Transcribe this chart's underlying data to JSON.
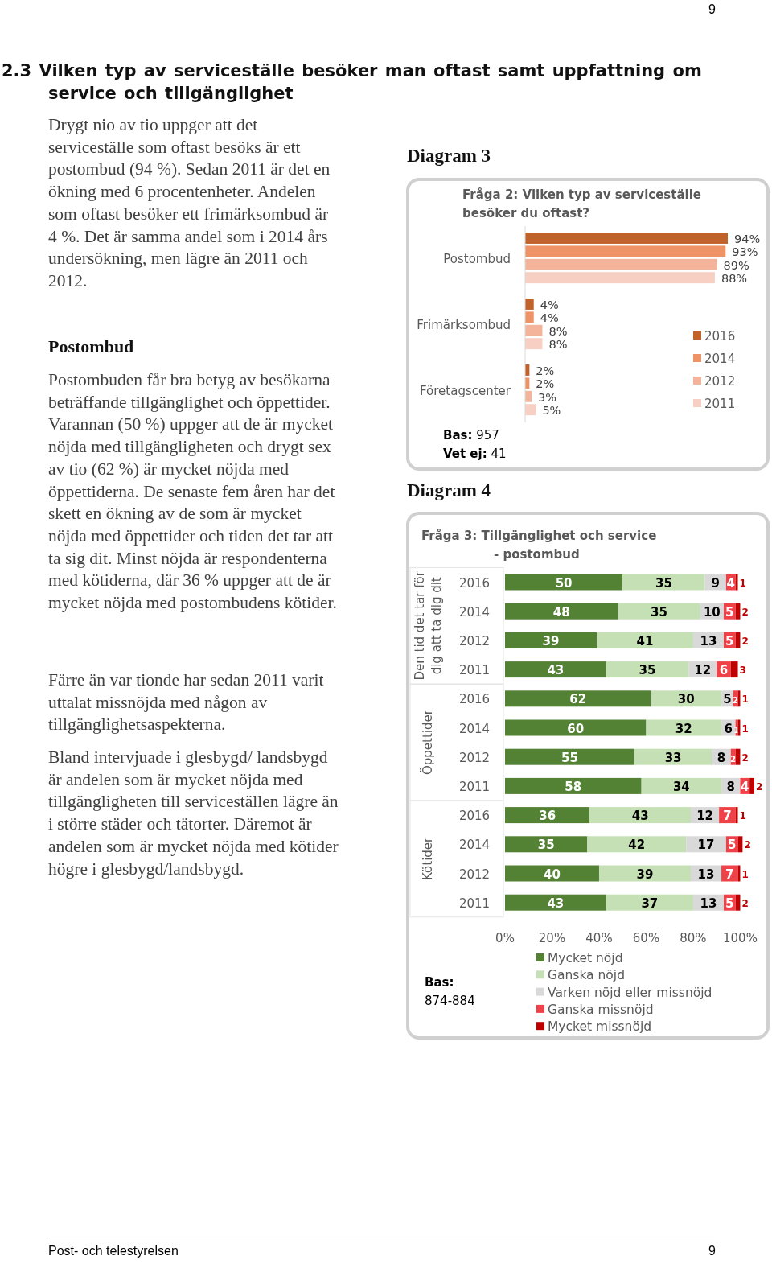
{
  "chart_data": [
    {
      "type": "bar",
      "orientation": "horizontal",
      "title": "Fråga 2: Vilken typ av serviceställe besöker du oftast?",
      "categories": [
        "Postombud",
        "Frimärksombud",
        "Företagscenter"
      ],
      "series": [
        {
          "name": "2016",
          "color": "#c0622a",
          "values": [
            94,
            4,
            2
          ],
          "value_labels": [
            "94%",
            "4%",
            "2%"
          ]
        },
        {
          "name": "2014",
          "color": "#ee9366",
          "values": [
            93,
            4,
            2
          ],
          "value_labels": [
            "93%",
            "4%",
            "2%"
          ]
        },
        {
          "name": "2012",
          "color": "#f4b49c",
          "values": [
            89,
            8,
            3
          ],
          "value_labels": [
            "89%",
            "8%",
            "3%"
          ]
        },
        {
          "name": "2011",
          "color": "#f8cfc3",
          "values": [
            88,
            8,
            5
          ],
          "value_labels": [
            "88%",
            "8%",
            "5%"
          ]
        }
      ],
      "legend": "right",
      "annotations": [
        "9",
        "2.3 Vilken typ av serviceställe besöker man oftast samt uppfattning om service och tillgänglighet",
        "Drygt nio av tio uppger att det serviceställe som oftast besöks är ett postombud (94 %). Sedan 2011 är det en ökning med 6 procentenheter. Andelen som oftast besöker ett frimärksombud är 4 %. Det är samma andel som i 2014 års undersökning, men lägre än 2011 och 2012.",
        "Postombud",
        "Postombuden får bra betyg av besökarna beträffande tillgänglighet och öppettider. Varannan (50 %) uppger att de är mycket nöjda med tillgängligheten och drygt sex av tio (62 %) är mycket nöjda med öppettiderna. De senaste fem åren har det skett en ökning av de som är mycket nöjda med öppettider och tiden det tar att ta sig dit. Minst nöjda är respondenterna med kötiderna, där 36 % uppger att de är mycket nöjda med postombudens kötider.",
        "Färre än var tionde har sedan 2011 varit uttalat missnöjda med någon av tillgänglighetsaspekterna.",
        "Bland intervjuade i glesbygd/ landsbygd är andelen som är mycket nöjda med tillgängligheten till serviceställen lägre än i större städer och tätorter. Däremot är andelen som är mycket nöjda med kötider högre i glesbygd/landsbygd.",
        "Diagram 3",
        "Bas: 957",
        "Vet ej: 41"
      ]
    },
    {
      "type": "bar",
      "orientation": "horizontal",
      "stacked": true,
      "title": "Fråga 3: Tillgänglighet och service - postombud",
      "categories": [
        "2016",
        "2014",
        "2012",
        "2011",
        "2016",
        "2014",
        "2012",
        "2011",
        "2016",
        "2014",
        "2012",
        "2011"
      ],
      "series": [
        {
          "name": "Mycket nöjd",
          "color": "#548235",
          "values": [
            50,
            48,
            39,
            43,
            62,
            60,
            55,
            58,
            36,
            35,
            40,
            43
          ]
        },
        {
          "name": "Ganska nöjd",
          "color": "#c5e0b4",
          "values": [
            35,
            35,
            41,
            35,
            30,
            32,
            33,
            34,
            43,
            42,
            39,
            37
          ]
        },
        {
          "name": "Varken nöjd eller missnöjd",
          "color": "#d9d9d9",
          "values": [
            9,
            10,
            13,
            12,
            5,
            6,
            8,
            8,
            12,
            17,
            13,
            13
          ]
        },
        {
          "name": "Ganska missnöjd",
          "color": "#ef4148",
          "values": [
            4,
            5,
            5,
            6,
            2,
            1,
            2,
            4,
            7,
            5,
            7,
            5
          ]
        },
        {
          "name": "Mycket missnöjd",
          "color": "#c00000",
          "values": [
            1,
            2,
            2,
            3,
            1,
            1,
            2,
            2,
            1,
            2,
            1,
            2
          ]
        }
      ],
      "data_labels": true,
      "xlim": [
        0,
        106
      ],
      "xticks": [
        {
          "value": 0,
          "label": "0%"
        },
        {
          "value": 20,
          "label": "20%"
        },
        {
          "value": 40,
          "label": "40%"
        },
        {
          "value": 60,
          "label": "60%"
        },
        {
          "value": 80,
          "label": "80%"
        },
        {
          "value": 100,
          "label": "100%"
        }
      ],
      "legend": "bottom",
      "annotations": [
        "Diagram 4",
        "Den tid det tar för dig att ta dig dit",
        "Öppettider",
        "Kötider",
        "Bas: 874-884",
        "Post- och telestyrelsen",
        "9"
      ]
    }
  ]
}
